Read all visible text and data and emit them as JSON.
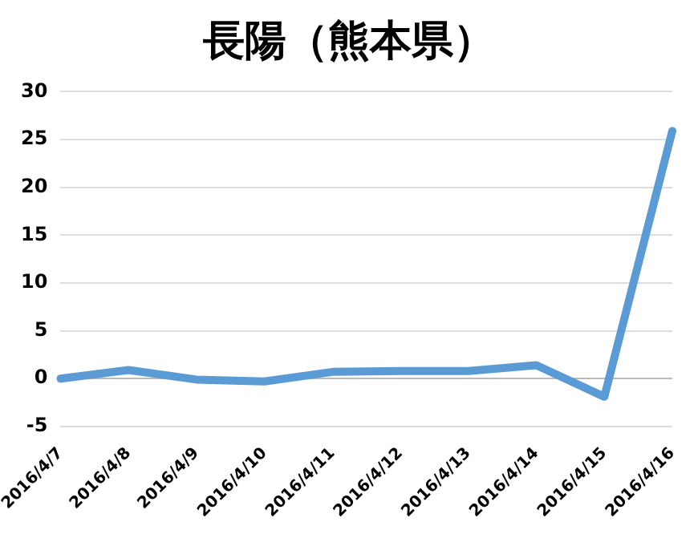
{
  "chart_data": {
    "type": "line",
    "title": "長陽（熊本県）",
    "categories": [
      "2016/4/7",
      "2016/4/8",
      "2016/4/9",
      "2016/4/10",
      "2016/4/11",
      "2016/4/12",
      "2016/4/13",
      "2016/4/14",
      "2016/4/15",
      "2016/4/16"
    ],
    "series": [
      {
        "color": "#5b9bd5",
        "values": [
          0,
          0.9,
          -0.1,
          -0.3,
          0.7,
          0.8,
          0.8,
          1.4,
          -1.9,
          25.9
        ]
      }
    ],
    "ylim": [
      -5,
      30
    ],
    "yticks": [
      -5,
      0,
      5,
      10,
      15,
      20,
      25,
      30
    ],
    "grid": "y",
    "legend": false,
    "marker": "none",
    "line_style": "solid"
  }
}
